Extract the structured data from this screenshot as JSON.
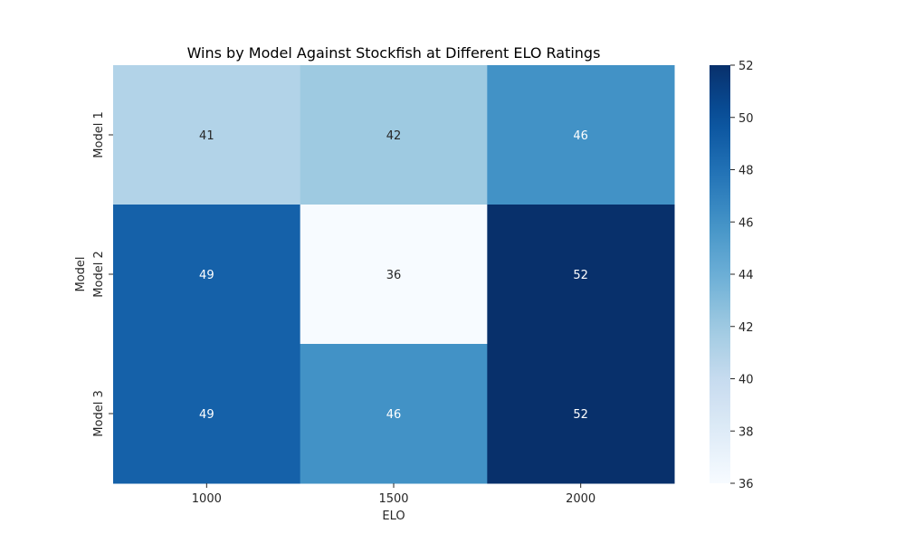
{
  "chart_data": {
    "type": "heatmap",
    "title": "Wins by Model Against Stockfish at Different ELO Ratings",
    "xlabel": "ELO",
    "ylabel": "Model",
    "x_categories": [
      "1000",
      "1500",
      "2000"
    ],
    "y_categories": [
      "Model 1",
      "Model 2",
      "Model 3"
    ],
    "values": [
      [
        41,
        42,
        46
      ],
      [
        49,
        36,
        52
      ],
      [
        49,
        46,
        52
      ]
    ],
    "colorbar": {
      "min": 36,
      "max": 52,
      "ticks": [
        36,
        38,
        40,
        42,
        44,
        46,
        48,
        50,
        52
      ]
    },
    "colormap": "Blues",
    "annotations": true
  }
}
